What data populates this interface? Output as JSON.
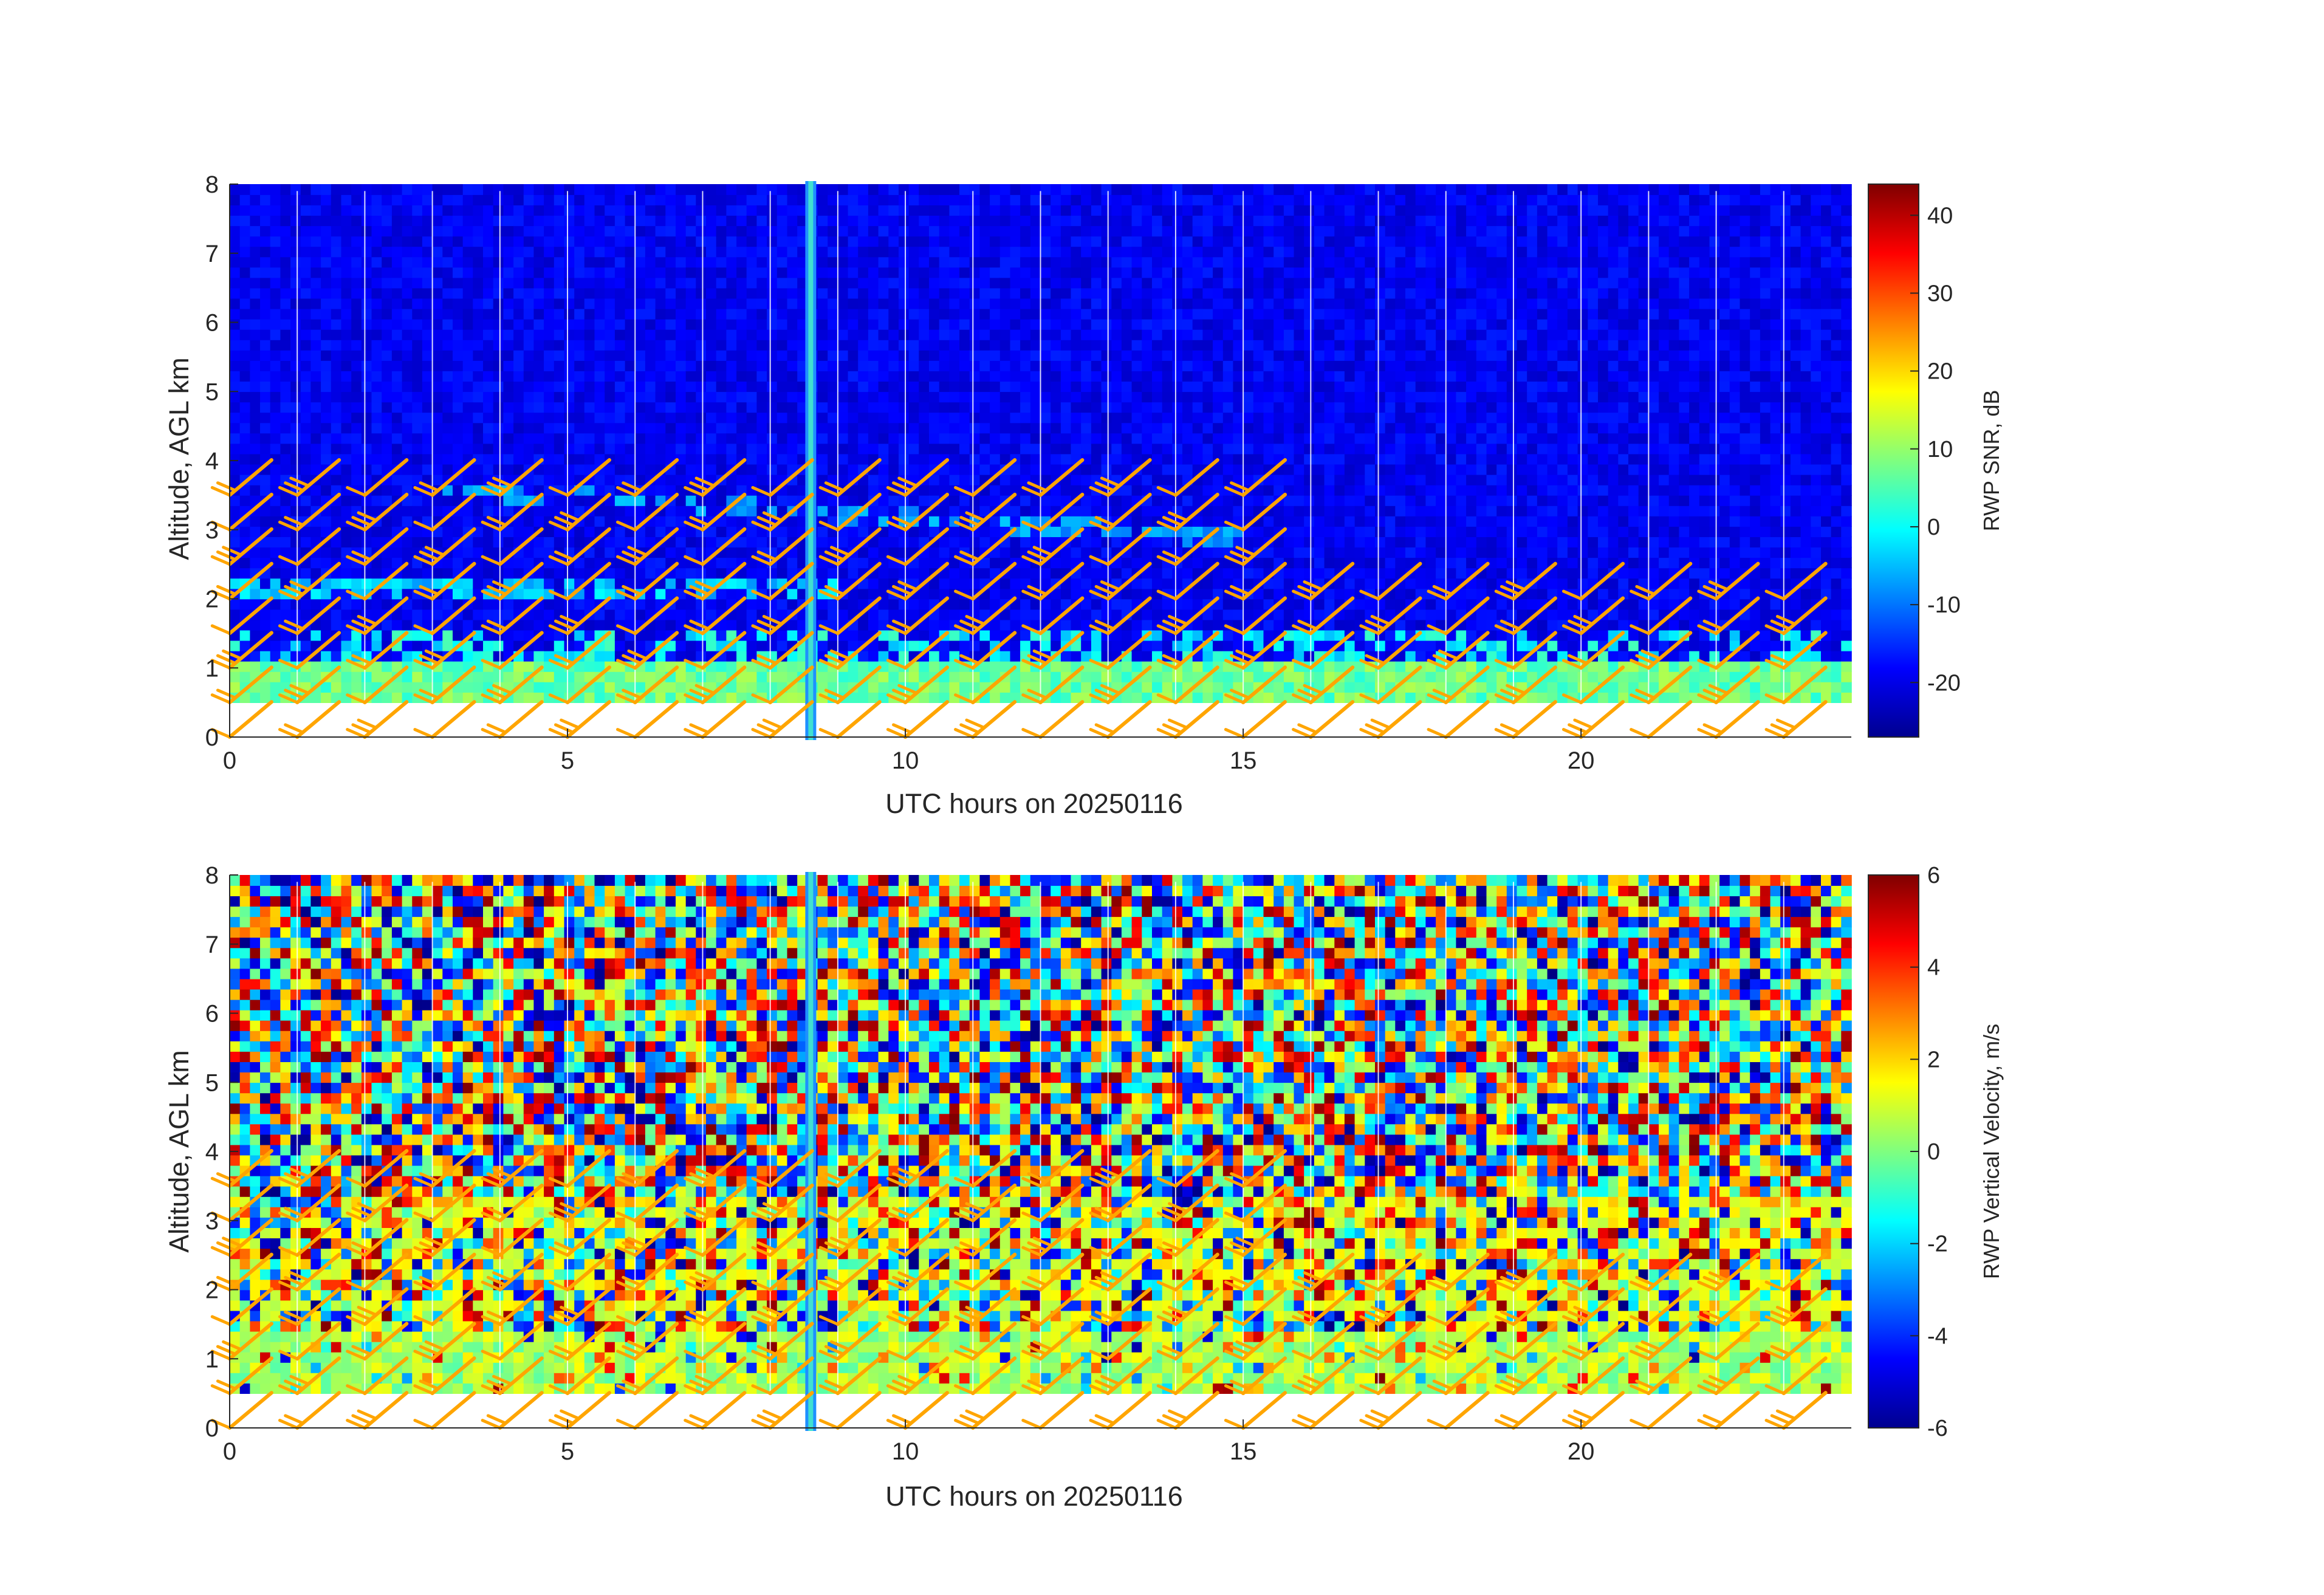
{
  "chart_data": [
    {
      "type": "heatmap",
      "title": "",
      "xlabel": "UTC hours on 20250116",
      "ylabel": "Altitude, AGL km",
      "xlim": [
        0,
        24
      ],
      "ylim": [
        0,
        8
      ],
      "xticks": [
        "0",
        "5",
        "10",
        "15",
        "20"
      ],
      "yticks": [
        "0",
        "1",
        "2",
        "3",
        "4",
        "5",
        "6",
        "7",
        "8"
      ],
      "grid": "vertical lines at each hour",
      "colorbar": {
        "label": "RWP SNR, dB",
        "ticks": [
          "-20",
          "-10",
          "0",
          "10",
          "20",
          "30",
          "40"
        ],
        "range": [
          -27,
          44
        ],
        "colormap": "jet"
      },
      "wind_barbs": {
        "times_h": [
          0,
          1,
          2,
          3,
          4,
          5,
          6,
          7,
          8,
          9,
          10,
          11,
          12,
          13,
          14,
          15,
          16,
          17,
          18,
          19,
          20,
          21,
          22,
          23
        ],
        "levels_km": [
          0,
          0.5,
          1,
          1.5,
          2,
          2.5,
          3,
          3.5
        ],
        "color": "#FFA500",
        "direction": "from the southwest"
      },
      "data_gap_h": 8.6,
      "features": [
        {
          "name": "boundary layer echo",
          "alt_km": [
            0.5,
            1.2
          ],
          "snr_db": 5
        },
        {
          "name": "elevated layer",
          "alt_km": [
            2.0,
            2.3
          ],
          "hours": [
            0,
            9
          ],
          "snr_db": -5
        },
        {
          "name": "sloping layer",
          "alt_km": [
            2.4,
            3.6
          ],
          "hours": [
            3,
            15
          ],
          "snr_db": -10
        }
      ]
    },
    {
      "type": "heatmap",
      "title": "",
      "xlabel": "UTC hours on 20250116",
      "ylabel": "Altitude, AGL km",
      "xlim": [
        0,
        24
      ],
      "ylim": [
        0,
        8
      ],
      "xticks": [
        "0",
        "5",
        "10",
        "15",
        "20"
      ],
      "yticks": [
        "0",
        "1",
        "2",
        "3",
        "4",
        "5",
        "6",
        "7",
        "8"
      ],
      "grid": "vertical lines at each hour",
      "colorbar": {
        "label": "RWP Vertical Velocity, m/s",
        "ticks": [
          "-6",
          "-4",
          "-2",
          "0",
          "2",
          "4",
          "6"
        ],
        "range": [
          -6,
          6
        ],
        "colormap": "jet"
      },
      "wind_barbs": {
        "times_h": [
          0,
          1,
          2,
          3,
          4,
          5,
          6,
          7,
          8,
          9,
          10,
          11,
          12,
          13,
          14,
          15,
          16,
          17,
          18,
          19,
          20,
          21,
          22,
          23
        ],
        "levels_km": [
          0,
          0.5,
          1,
          1.5,
          2,
          2.5,
          3,
          3.5
        ],
        "color": "#FFA500",
        "direction": "from the southwest"
      },
      "data_gap_h": 8.6,
      "features": [
        {
          "name": "near-zero velocity layer",
          "alt_km": [
            0.5,
            1.4
          ],
          "w_ms": 0.5
        },
        {
          "name": "noise above",
          "alt_km": [
            3.5,
            8
          ],
          "w_ms": "random ±6"
        }
      ]
    }
  ]
}
